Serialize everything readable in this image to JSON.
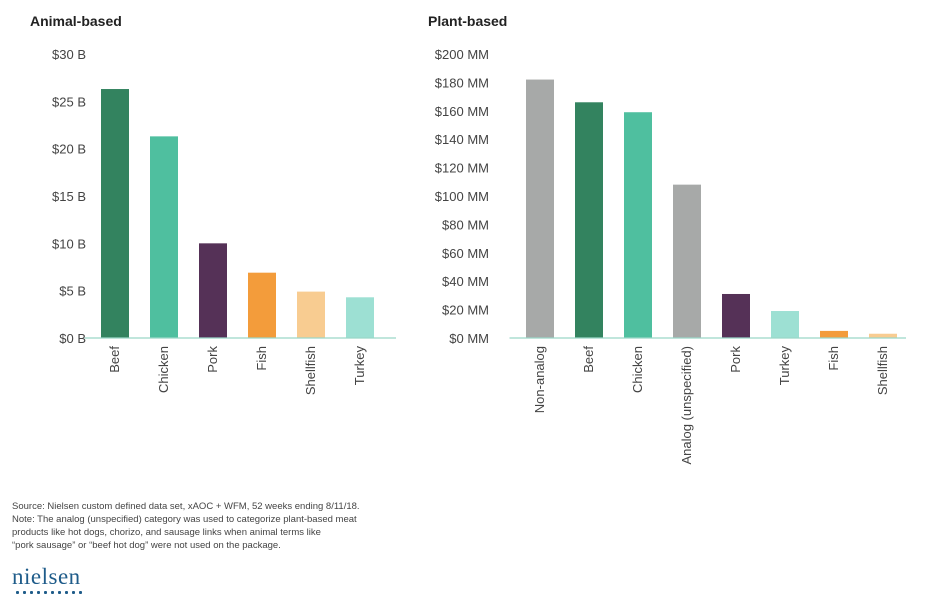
{
  "chart_data": [
    {
      "type": "bar",
      "title": "Animal-based",
      "categories": [
        "Beef",
        "Chicken",
        "Pork",
        "Fish",
        "Shellfish",
        "Turkey"
      ],
      "values": [
        26.3,
        21.3,
        10.0,
        6.9,
        4.9,
        4.3
      ],
      "colors": [
        "#33835f",
        "#4fbf9f",
        "#553157",
        "#f39c3b",
        "#f8cc91",
        "#9de0d3"
      ],
      "unit": "B",
      "ylim": [
        0,
        30
      ],
      "yticks": [
        0,
        5,
        10,
        15,
        20,
        25,
        30
      ],
      "ytick_labels": [
        "$0 B",
        "$5 B",
        "$10 B",
        "$15 B",
        "$20 B",
        "$25 B",
        "$30 B"
      ],
      "xlabel": "",
      "ylabel": "",
      "grid": false
    },
    {
      "type": "bar",
      "title": "Plant-based",
      "categories": [
        "Non-analog",
        "Beef",
        "Chicken",
        "Analog (unspecified)",
        "Pork",
        "Turkey",
        "Fish",
        "Shellfish"
      ],
      "values": [
        182,
        166,
        159,
        108,
        31,
        19,
        5,
        3
      ],
      "colors": [
        "#a7a9a8",
        "#33835f",
        "#4fbf9f",
        "#a7a9a8",
        "#553157",
        "#9de0d3",
        "#f39c3b",
        "#f8cc91"
      ],
      "unit": "MM",
      "ylim": [
        0,
        200
      ],
      "yticks": [
        0,
        20,
        40,
        60,
        80,
        100,
        120,
        140,
        160,
        180,
        200
      ],
      "ytick_labels": [
        "$0 MM",
        "$20 MM",
        "$40 MM",
        "$60 MM",
        "$80 MM",
        "$100 MM",
        "$120 MM",
        "$140 MM",
        "$160 MM",
        "$180 MM",
        "$200 MM"
      ],
      "xlabel": "",
      "ylabel": "",
      "grid": false
    }
  ],
  "footnote": {
    "lines": [
      "Source: Nielsen custom defined data set, xAOC + WFM, 52 weeks ending 8/11/18.",
      "Note: The analog (unspecified) category was used to categorize plant-based meat",
      "products like hot dogs, chorizo, and sausage links when animal terms like",
      "“pork sausage” or “beef hot dog” were not used on the package."
    ]
  },
  "logo": {
    "text": "nielsen"
  }
}
